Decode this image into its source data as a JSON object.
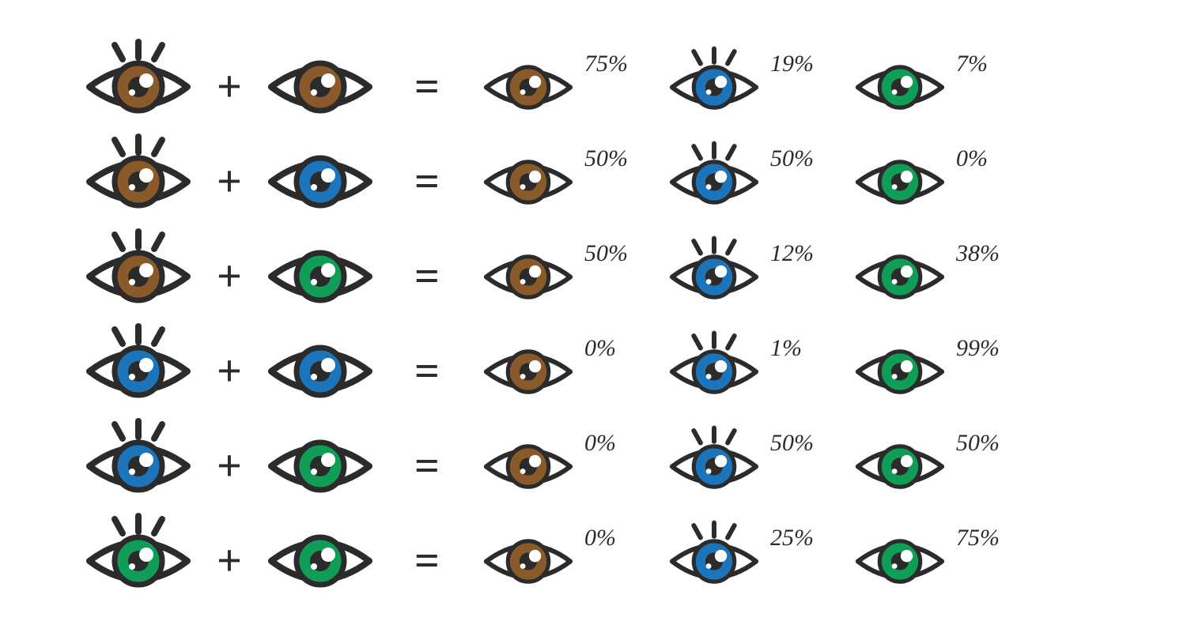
{
  "colors": {
    "brown": "#8a5a2b",
    "blue": "#1c74bb",
    "green": "#0f9d58",
    "outline": "#2b2b2b",
    "white": "#ffffff",
    "pupil": "#2b2b2b",
    "text": "#2b2b2b",
    "background": "#ffffff"
  },
  "symbols": {
    "plus": "+",
    "equals": "="
  },
  "style": {
    "outline_width": 8,
    "outline_width_small": 7,
    "pct_fontsize": 30,
    "symbol_fontsize": 56,
    "lash_count": 3
  },
  "rows": [
    {
      "p1": {
        "color": "brown",
        "lashes": true
      },
      "p2": {
        "color": "brown",
        "lashes": false
      },
      "out": [
        {
          "color": "brown",
          "lashes": false,
          "pct": "75%"
        },
        {
          "color": "blue",
          "lashes": true,
          "pct": "19%"
        },
        {
          "color": "green",
          "lashes": false,
          "pct": "7%"
        }
      ]
    },
    {
      "p1": {
        "color": "brown",
        "lashes": true
      },
      "p2": {
        "color": "blue",
        "lashes": false
      },
      "out": [
        {
          "color": "brown",
          "lashes": false,
          "pct": "50%"
        },
        {
          "color": "blue",
          "lashes": true,
          "pct": "50%"
        },
        {
          "color": "green",
          "lashes": false,
          "pct": "0%"
        }
      ]
    },
    {
      "p1": {
        "color": "brown",
        "lashes": true
      },
      "p2": {
        "color": "green",
        "lashes": false
      },
      "out": [
        {
          "color": "brown",
          "lashes": false,
          "pct": "50%"
        },
        {
          "color": "blue",
          "lashes": true,
          "pct": "12%"
        },
        {
          "color": "green",
          "lashes": false,
          "pct": "38%"
        }
      ]
    },
    {
      "p1": {
        "color": "blue",
        "lashes": true
      },
      "p2": {
        "color": "blue",
        "lashes": false
      },
      "out": [
        {
          "color": "brown",
          "lashes": false,
          "pct": "0%"
        },
        {
          "color": "blue",
          "lashes": true,
          "pct": "1%"
        },
        {
          "color": "green",
          "lashes": false,
          "pct": "99%"
        }
      ]
    },
    {
      "p1": {
        "color": "blue",
        "lashes": true
      },
      "p2": {
        "color": "green",
        "lashes": false
      },
      "out": [
        {
          "color": "brown",
          "lashes": false,
          "pct": "0%"
        },
        {
          "color": "blue",
          "lashes": true,
          "pct": "50%"
        },
        {
          "color": "green",
          "lashes": false,
          "pct": "50%"
        }
      ]
    },
    {
      "p1": {
        "color": "green",
        "lashes": true
      },
      "p2": {
        "color": "green",
        "lashes": false
      },
      "out": [
        {
          "color": "brown",
          "lashes": false,
          "pct": "0%"
        },
        {
          "color": "blue",
          "lashes": true,
          "pct": "25%"
        },
        {
          "color": "green",
          "lashes": false,
          "pct": "75%"
        }
      ]
    }
  ]
}
